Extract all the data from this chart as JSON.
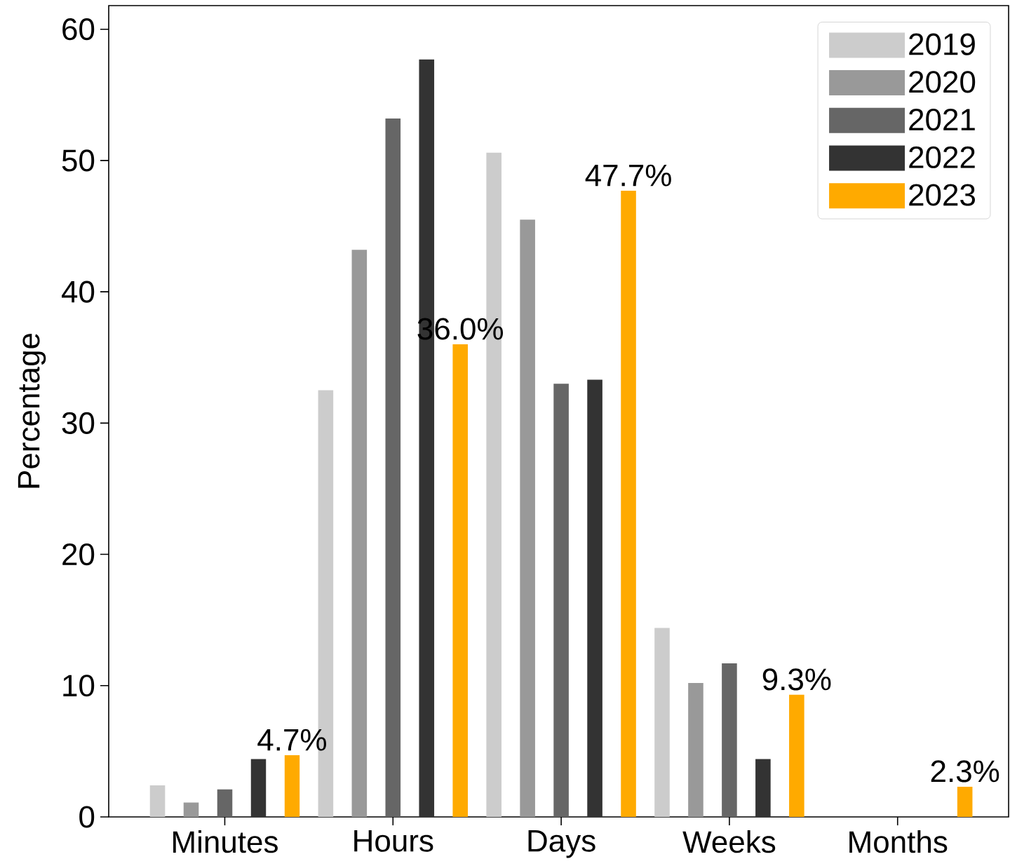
{
  "chart_data": {
    "type": "bar",
    "ylabel": "Percentage",
    "categories": [
      "Minutes",
      "Hours",
      "Days",
      "Weeks",
      "Months"
    ],
    "ylim": [
      0,
      61.8
    ],
    "yticks": [
      0,
      10,
      20,
      30,
      40,
      50,
      60
    ],
    "legend": "top right",
    "series": [
      {
        "name": "2019",
        "color": "#cccccc",
        "values": [
          2.4,
          32.5,
          50.6,
          14.4,
          0
        ]
      },
      {
        "name": "2020",
        "color": "#999999",
        "values": [
          1.1,
          43.2,
          45.5,
          10.2,
          0
        ]
      },
      {
        "name": "2021",
        "color": "#666666",
        "values": [
          2.1,
          53.2,
          33.0,
          11.7,
          0
        ]
      },
      {
        "name": "2022",
        "color": "#333333",
        "values": [
          4.4,
          57.7,
          33.3,
          4.4,
          0
        ]
      },
      {
        "name": "2023",
        "color": "#ffaa00",
        "values": [
          4.7,
          36.0,
          47.7,
          9.3,
          2.3
        ],
        "value_labels": [
          "4.7%",
          "36.0%",
          "47.7%",
          "9.3%",
          "2.3%"
        ]
      }
    ]
  }
}
